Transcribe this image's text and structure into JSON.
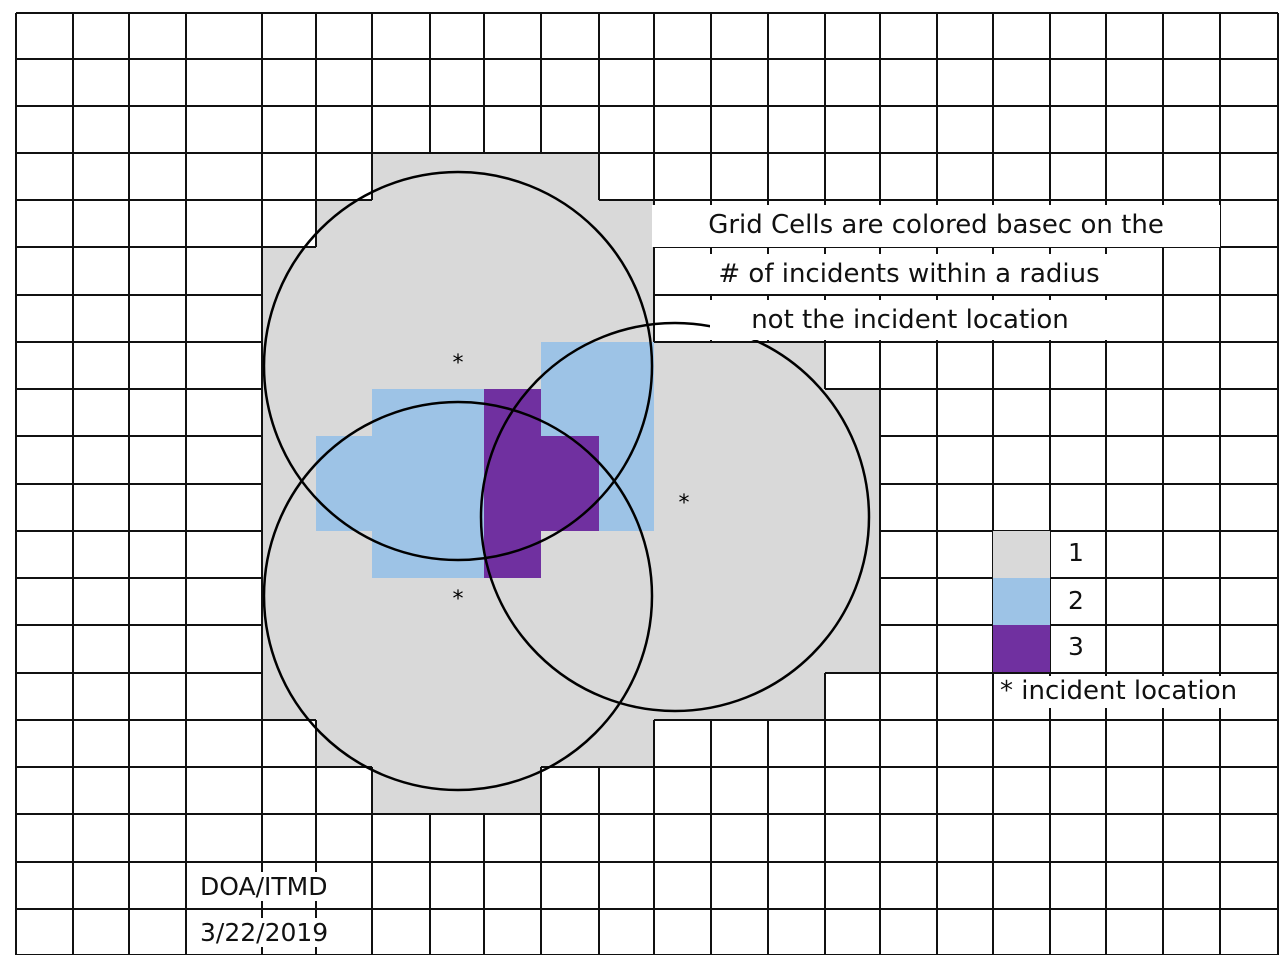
{
  "colors": {
    "background": "#ffffff",
    "grid_line": "#111111",
    "level_1": "#d9d9d9",
    "level_2": "#9dc3e6",
    "level_3": "#7030a0",
    "circle": "#000000"
  },
  "annotation": {
    "line_1": "Grid Cells are colored basec on the",
    "line_2": "# of incidents within a radius",
    "line_3": "not the incident location"
  },
  "legend": {
    "items": [
      {
        "label": "1",
        "color": "#d9d9d9"
      },
      {
        "label": "2",
        "color": "#9dc3e6"
      },
      {
        "label": "3",
        "color": "#7030a0"
      }
    ],
    "note": "* incident location"
  },
  "incidents": [
    {
      "marker": "*"
    },
    {
      "marker": "*"
    },
    {
      "marker": "*"
    }
  ],
  "credit": {
    "org": "DOA/ITMD",
    "date": "3/22/2019"
  }
}
